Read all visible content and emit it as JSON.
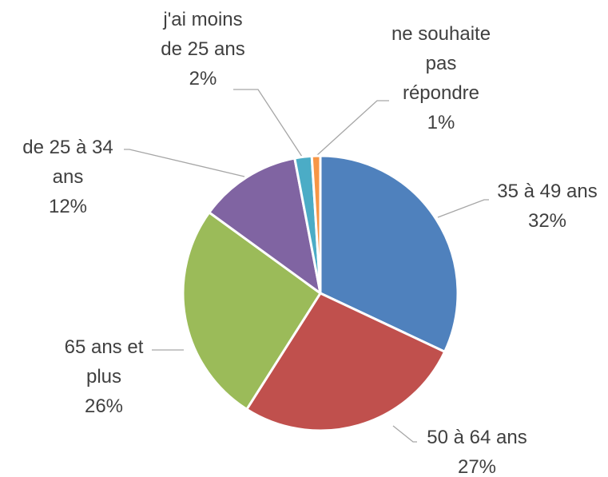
{
  "chart_data": {
    "type": "pie",
    "categories": [
      "35 à 49 ans",
      "50 à 64 ans",
      "65 ans et plus",
      "de 25 à 34 ans",
      "j'ai moins de 25 ans",
      "ne souhaite pas répondre"
    ],
    "values": [
      32,
      27,
      26,
      12,
      2,
      1
    ],
    "value_labels": [
      "32%",
      "27%",
      "26%",
      "12%",
      "2%",
      "1%"
    ],
    "colors": [
      "#4f81bd",
      "#c0504d",
      "#9bbb59",
      "#8064a2",
      "#4bacc6",
      "#f79646"
    ]
  }
}
